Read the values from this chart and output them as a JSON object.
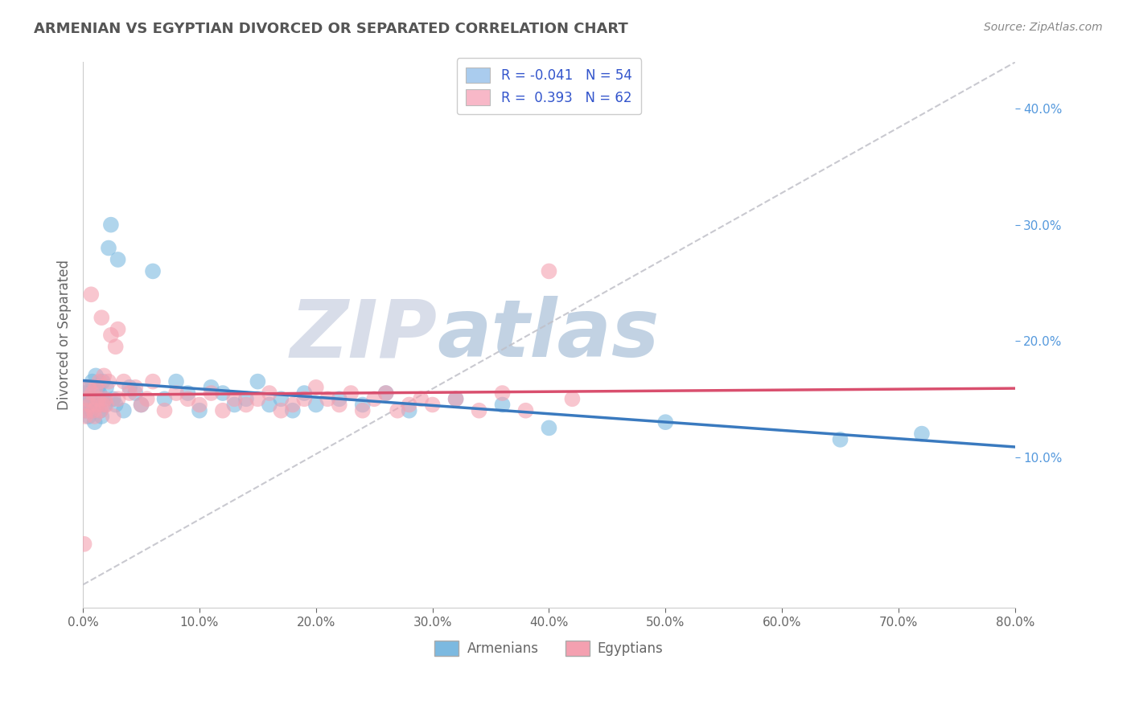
{
  "title": "ARMENIAN VS EGYPTIAN DIVORCED OR SEPARATED CORRELATION CHART",
  "source": "Source: ZipAtlas.com",
  "ylabel": "Divorced or Separated",
  "xlim": [
    0.0,
    80.0
  ],
  "ylim": [
    -3.0,
    44.0
  ],
  "xticks": [
    0,
    10,
    20,
    30,
    40,
    50,
    60,
    70,
    80
  ],
  "yticks_right": [
    10,
    20,
    30,
    40
  ],
  "armenian_R": -0.041,
  "armenian_N": 54,
  "egyptian_R": 0.393,
  "egyptian_N": 62,
  "armenian_color": "#7cb9e0",
  "egyptian_color": "#f4a0b0",
  "armenian_line_color": "#3a7abf",
  "egyptian_line_color": "#d94f6e",
  "diag_line_color": "#c0c0c8",
  "background_color": "#ffffff",
  "grid_color": "#d0d0d8",
  "title_color": "#555555",
  "source_color": "#888888",
  "legend_text_color": "#3355cc",
  "tick_color": "#666666",
  "right_tick_color": "#5599dd",
  "watermark_zip_color": "#c8cfe0",
  "watermark_atlas_color": "#a8c0d8",
  "armenian_x": [
    0.1,
    0.2,
    0.3,
    0.4,
    0.5,
    0.6,
    0.7,
    0.8,
    0.9,
    1.0,
    1.1,
    1.2,
    1.3,
    1.4,
    1.5,
    1.6,
    1.7,
    1.8,
    1.9,
    2.0,
    2.2,
    2.4,
    2.6,
    2.8,
    3.0,
    3.5,
    4.0,
    4.5,
    5.0,
    6.0,
    7.0,
    8.0,
    9.0,
    10.0,
    11.0,
    12.0,
    13.0,
    14.0,
    15.0,
    16.0,
    17.0,
    18.0,
    19.0,
    20.0,
    22.0,
    24.0,
    26.0,
    28.0,
    32.0,
    36.0,
    40.0,
    50.0,
    65.0,
    72.0
  ],
  "armenian_y": [
    15.5,
    14.0,
    16.0,
    14.5,
    13.5,
    15.0,
    14.0,
    16.5,
    15.0,
    13.0,
    17.0,
    14.5,
    16.0,
    15.5,
    14.0,
    13.5,
    16.5,
    15.0,
    14.5,
    16.0,
    28.0,
    30.0,
    15.0,
    14.5,
    27.0,
    14.0,
    16.0,
    15.5,
    14.5,
    26.0,
    15.0,
    16.5,
    15.5,
    14.0,
    16.0,
    15.5,
    14.5,
    15.0,
    16.5,
    14.5,
    15.0,
    14.0,
    15.5,
    14.5,
    15.0,
    14.5,
    15.5,
    14.0,
    15.0,
    14.5,
    12.5,
    13.0,
    11.5,
    12.0
  ],
  "egyptian_x": [
    0.1,
    0.2,
    0.3,
    0.4,
    0.5,
    0.6,
    0.7,
    0.8,
    0.9,
    1.0,
    1.1,
    1.2,
    1.3,
    1.4,
    1.5,
    1.6,
    1.7,
    1.8,
    1.9,
    2.0,
    2.2,
    2.4,
    2.6,
    2.8,
    3.0,
    3.5,
    4.0,
    4.5,
    5.0,
    5.5,
    6.0,
    7.0,
    8.0,
    9.0,
    10.0,
    11.0,
    12.0,
    13.0,
    14.0,
    15.0,
    16.0,
    17.0,
    18.0,
    19.0,
    20.0,
    21.0,
    22.0,
    23.0,
    24.0,
    25.0,
    26.0,
    27.0,
    28.0,
    29.0,
    30.0,
    32.0,
    34.0,
    36.0,
    38.0,
    40.0,
    42.0,
    3.0
  ],
  "egyptian_y": [
    2.5,
    13.5,
    14.0,
    15.0,
    16.0,
    14.5,
    24.0,
    15.5,
    14.0,
    13.5,
    16.0,
    14.5,
    15.0,
    16.5,
    14.0,
    22.0,
    14.5,
    17.0,
    15.0,
    14.5,
    16.5,
    20.5,
    13.5,
    19.5,
    15.0,
    16.5,
    15.5,
    16.0,
    14.5,
    15.0,
    16.5,
    14.0,
    15.5,
    15.0,
    14.5,
    15.5,
    14.0,
    15.0,
    14.5,
    15.0,
    15.5,
    14.0,
    14.5,
    15.0,
    16.0,
    15.0,
    14.5,
    15.5,
    14.0,
    15.0,
    15.5,
    14.0,
    14.5,
    15.0,
    14.5,
    15.0,
    14.0,
    15.5,
    14.0,
    26.0,
    15.0,
    21.0
  ],
  "legend_entries": [
    {
      "label": "R = -0.041   N = 54",
      "facecolor": "#aaccee"
    },
    {
      "label": "R =  0.393   N = 62",
      "facecolor": "#f8b8c8"
    }
  ],
  "bottom_legend": [
    "Armenians",
    "Egyptians"
  ]
}
